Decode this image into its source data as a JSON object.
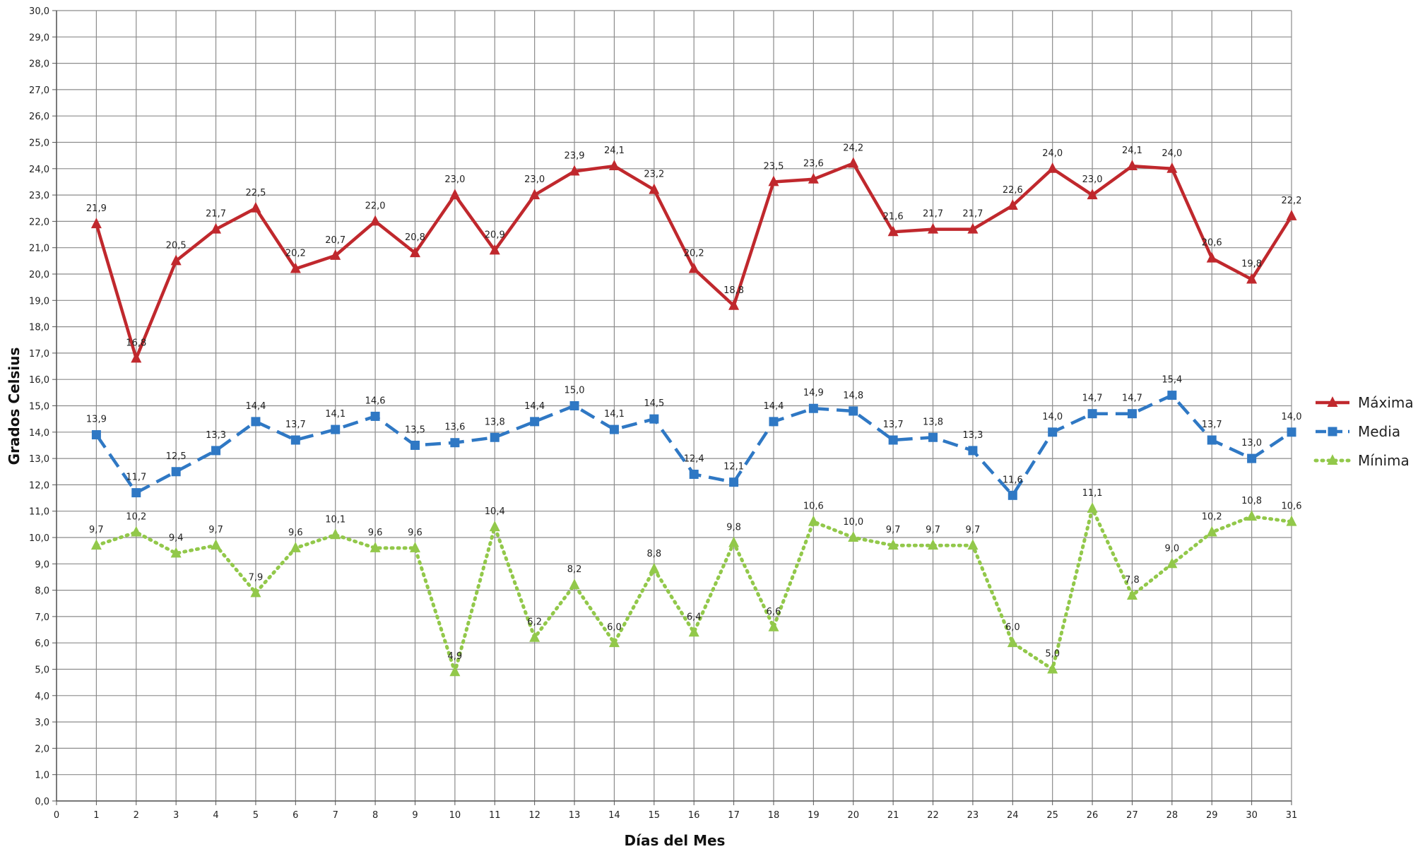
{
  "chart_data": {
    "type": "line",
    "title": "",
    "xlabel": "Días del Mes",
    "ylabel": "Grados Celsius",
    "x": [
      1,
      2,
      3,
      4,
      5,
      6,
      7,
      8,
      9,
      10,
      11,
      12,
      13,
      14,
      15,
      16,
      17,
      18,
      19,
      20,
      21,
      22,
      23,
      24,
      25,
      26,
      27,
      28,
      29,
      30,
      31
    ],
    "xlim": [
      0,
      31
    ],
    "ylim": [
      0,
      30
    ],
    "y_ticks": [
      "0,0",
      "1,0",
      "2,0",
      "3,0",
      "4,0",
      "5,0",
      "6,0",
      "7,0",
      "8,0",
      "9,0",
      "10,0",
      "11,0",
      "12,0",
      "13,0",
      "14,0",
      "15,0",
      "16,0",
      "17,0",
      "18,0",
      "19,0",
      "20,0",
      "21,0",
      "22,0",
      "23,0",
      "24,0",
      "25,0",
      "26,0",
      "27,0",
      "28,0",
      "29,0",
      "30,0"
    ],
    "x_ticks": [
      "0",
      "1",
      "2",
      "3",
      "4",
      "5",
      "6",
      "7",
      "8",
      "9",
      "10",
      "11",
      "12",
      "13",
      "14",
      "15",
      "16",
      "17",
      "18",
      "19",
      "20",
      "21",
      "22",
      "23",
      "24",
      "25",
      "26",
      "27",
      "28",
      "29",
      "30",
      "31"
    ],
    "grid": true,
    "legend_position": "right",
    "series": [
      {
        "name": "Máxima",
        "color": "#C0282D",
        "style": "solid",
        "marker": "triangle",
        "values": [
          21.9,
          16.8,
          20.5,
          21.7,
          22.5,
          20.2,
          20.7,
          22.0,
          20.8,
          23.0,
          20.9,
          23.0,
          23.9,
          24.1,
          23.2,
          20.2,
          18.8,
          23.5,
          23.6,
          24.2,
          21.6,
          21.7,
          21.7,
          22.6,
          24.0,
          23.0,
          24.1,
          24.0,
          20.6,
          19.8,
          22.2
        ],
        "labels": [
          "21,9",
          "16,8",
          "20,5",
          "21,7",
          "22,5",
          "20,2",
          "20,7",
          "22,0",
          "20,8",
          "23,0",
          "20,9",
          "23,0",
          "23,9",
          "24,1",
          "23,2",
          "20,2",
          "18,8",
          "23,5",
          "23,6",
          "24,2",
          "21,6",
          "21,7",
          "21,7",
          "22,6",
          "24,0",
          "23,0",
          "24,1",
          "24,0",
          "20,6",
          "19,8",
          "22,2"
        ]
      },
      {
        "name": "Media",
        "color": "#2F78C4",
        "style": "dashed",
        "marker": "square",
        "values": [
          13.9,
          11.7,
          12.5,
          13.3,
          14.4,
          13.7,
          14.1,
          14.6,
          13.5,
          13.6,
          13.8,
          14.4,
          15.0,
          14.1,
          14.5,
          12.4,
          12.1,
          14.4,
          14.9,
          14.8,
          13.7,
          13.8,
          13.3,
          11.6,
          14.0,
          14.7,
          14.7,
          15.4,
          13.7,
          13.0,
          14.0
        ],
        "labels": [
          "13,9",
          "11,7",
          "12,5",
          "13,3",
          "14,4",
          "13,7",
          "14,1",
          "14,6",
          "13,5",
          "13,6",
          "13,8",
          "14,4",
          "15,0",
          "14,1",
          "14,5",
          "12,4",
          "12,1",
          "14,4",
          "14,9",
          "14,8",
          "13,7",
          "13,8",
          "13,3",
          "11,6",
          "14,0",
          "14,7",
          "14,7",
          "15,4",
          "13,7",
          "13,0",
          "14,0"
        ]
      },
      {
        "name": "Mínima",
        "color": "#92C84A",
        "style": "dotted",
        "marker": "triangle",
        "values": [
          9.7,
          10.2,
          9.4,
          9.7,
          7.9,
          9.6,
          10.1,
          9.6,
          9.6,
          4.9,
          10.4,
          6.2,
          8.2,
          6.0,
          8.8,
          6.4,
          9.8,
          6.6,
          10.6,
          10.0,
          9.7,
          9.7,
          9.7,
          6.0,
          5.0,
          11.1,
          7.8,
          9.0,
          10.2,
          10.8,
          10.6
        ],
        "labels": [
          "9,7",
          "10,2",
          "9,4",
          "9,7",
          "7,9",
          "9,6",
          "10,1",
          "9,6",
          "9,6",
          "4,9",
          "10,4",
          "6,2",
          "8,2",
          "6,0",
          "8,8",
          "6,4",
          "9,8",
          "6,6",
          "10,6",
          "10,0",
          "9,7",
          "9,7",
          "9,7",
          "6,0",
          "5,0",
          "11,1",
          "7,8",
          "9,0",
          "10,2",
          "10,8",
          "10,6"
        ]
      }
    ]
  }
}
